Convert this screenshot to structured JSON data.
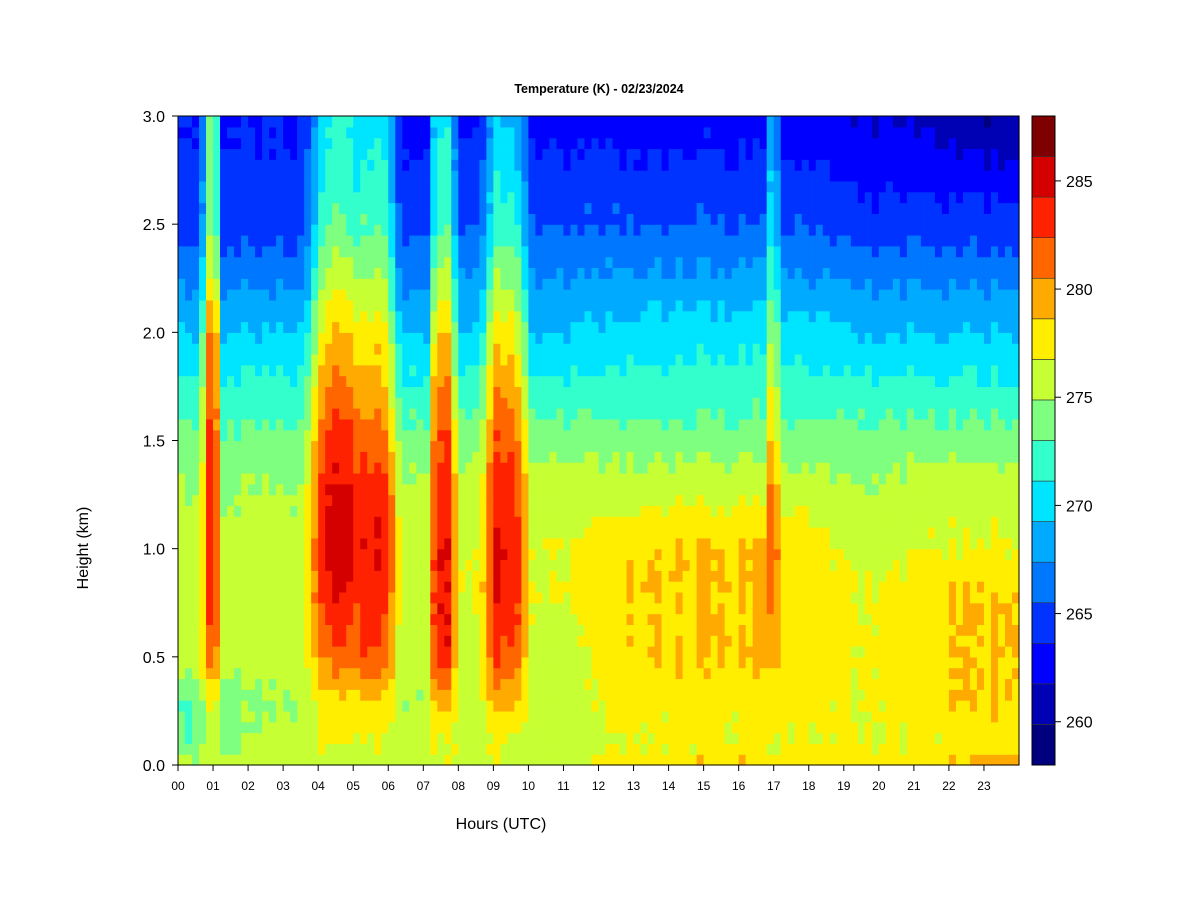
{
  "chart_data": {
    "type": "heatmap",
    "title": "Temperature (K) - 02/23/2024",
    "xlabel": "Hours (UTC)",
    "ylabel": "Height (km)",
    "xlim": [
      0,
      24
    ],
    "ylim": [
      0,
      3.0
    ],
    "x_ticks": [
      "00",
      "01",
      "02",
      "03",
      "04",
      "05",
      "06",
      "07",
      "08",
      "09",
      "10",
      "11",
      "12",
      "13",
      "14",
      "15",
      "16",
      "17",
      "18",
      "19",
      "20",
      "21",
      "22",
      "23"
    ],
    "y_ticks": [
      "0.0",
      "0.5",
      "1.0",
      "1.5",
      "2.0",
      "2.5",
      "3.0"
    ],
    "colorbar": {
      "min": 258,
      "max": 288,
      "step": 2,
      "tick_values": [
        260,
        265,
        270,
        275,
        280,
        285
      ],
      "tick_labels": [
        "260",
        "265",
        "270",
        "275",
        "280",
        "285"
      ],
      "colors": [
        "#00007f",
        "#0000b5",
        "#0000ff",
        "#0033ff",
        "#0077ff",
        "#00aaff",
        "#00e5ff",
        "#33ffcc",
        "#7fff7f",
        "#c6ff33",
        "#ffee00",
        "#ffaa00",
        "#ff6600",
        "#ff2200",
        "#d40000",
        "#7f0000"
      ]
    },
    "profile_model": {
      "levels_km": [
        0.0,
        0.1,
        0.3,
        0.5,
        0.8,
        1.0,
        1.3,
        1.6,
        2.0,
        2.5,
        3.0
      ],
      "base_times_h": [
        0,
        3,
        11,
        13,
        17,
        19.5,
        22,
        24
      ],
      "base_profiles_K": [
        [
          277,
          274,
          274,
          277,
          277,
          277,
          276,
          274,
          270,
          265,
          264
        ],
        [
          277,
          277,
          276,
          277,
          277,
          277,
          276,
          274,
          270,
          265,
          264
        ],
        [
          277,
          277,
          277,
          277,
          278,
          278,
          277,
          274,
          270,
          266,
          263
        ],
        [
          280,
          278,
          279,
          280,
          280,
          280,
          277,
          274,
          271,
          266,
          263
        ],
        [
          280,
          278,
          279,
          280,
          280,
          280,
          277,
          274,
          271,
          266,
          263
        ],
        [
          279,
          278,
          278,
          278,
          278,
          277,
          276,
          274,
          270,
          265,
          262
        ],
        [
          280,
          278,
          280,
          280,
          280,
          278,
          277,
          274,
          270,
          265,
          261
        ],
        [
          282,
          279,
          280,
          280,
          280,
          278,
          277,
          274,
          270,
          265,
          260
        ]
      ],
      "warm_events": [
        {
          "center_h": 0.95,
          "halfwidth_h": 0.3,
          "profile_K": [
            277,
            277,
            278,
            283,
            285,
            285,
            285,
            284,
            282,
            275,
            274
          ]
        },
        {
          "center_h": 4.6,
          "halfwidth_h": 1.0,
          "profile_K": [
            277,
            278,
            279,
            283,
            286,
            287,
            286,
            284,
            280,
            274,
            272
          ]
        },
        {
          "center_h": 5.6,
          "halfwidth_h": 0.75,
          "profile_K": [
            277,
            278,
            280,
            284,
            285,
            286,
            285,
            282,
            279,
            274,
            271
          ]
        },
        {
          "center_h": 7.55,
          "halfwidth_h": 0.45,
          "profile_K": [
            278,
            278,
            281,
            286,
            286,
            286,
            285,
            284,
            280,
            274,
            272
          ]
        },
        {
          "center_h": 9.35,
          "halfwidth_h": 0.75,
          "profile_K": [
            278,
            278,
            281,
            284,
            286,
            286,
            285,
            283,
            279,
            273,
            270
          ]
        },
        {
          "center_h": 16.98,
          "halfwidth_h": 0.18,
          "profile_K": [
            278,
            278,
            279,
            281,
            283,
            284,
            283,
            280,
            277,
            272,
            270
          ]
        }
      ]
    }
  }
}
